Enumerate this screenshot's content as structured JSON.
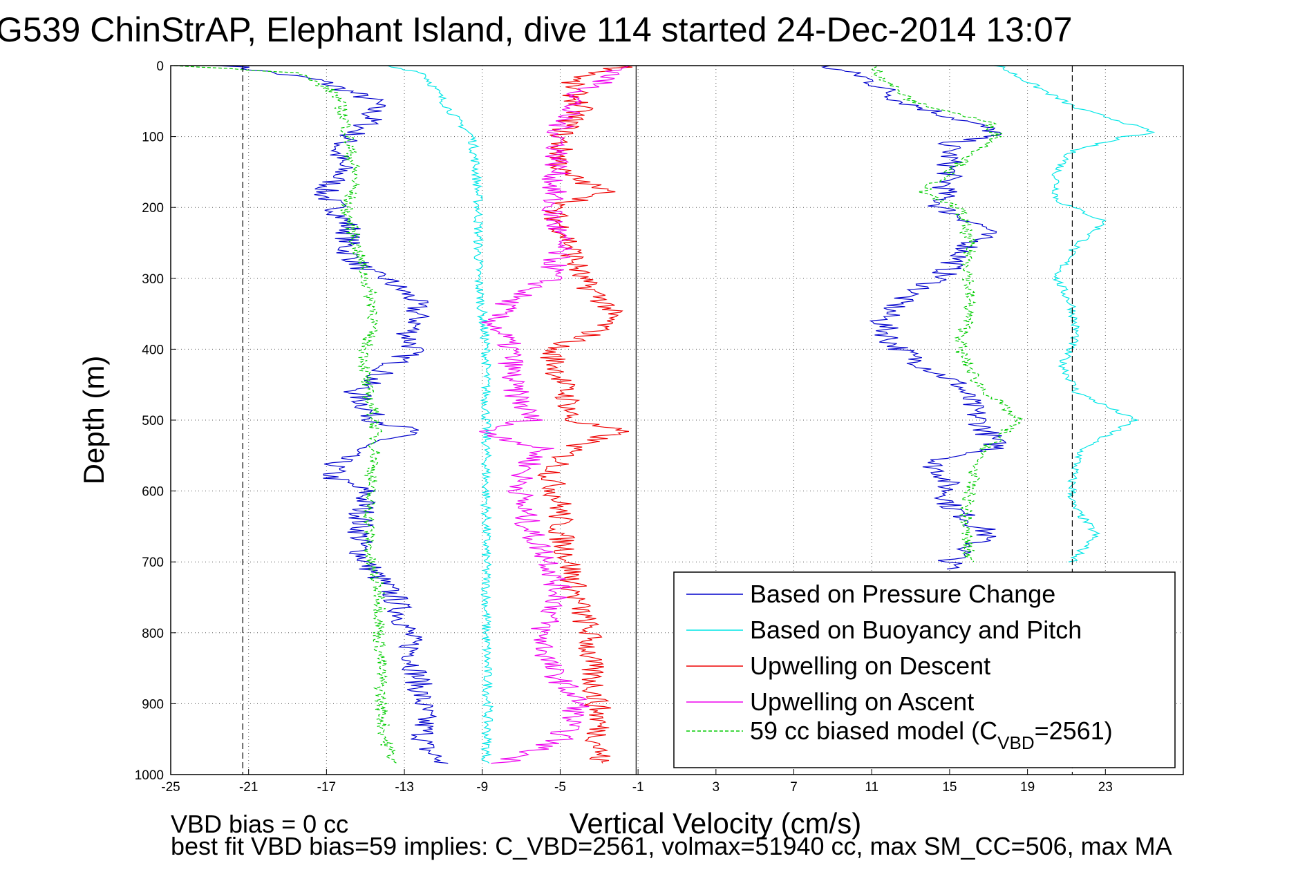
{
  "chart_data": {
    "type": "line",
    "title": "G539 ChinStrAP, Elephant Island, dive 114 started 24-Dec-2014 13:07",
    "xlabel": "Vertical Velocity (cm/s)",
    "ylabel": "Depth (m)",
    "xlim": [
      -25,
      27
    ],
    "ylim": [
      0,
      1000
    ],
    "y_reversed": true,
    "grid": true,
    "x_ticks": [
      -25,
      -21,
      -17,
      -13,
      -9,
      -5,
      -1,
      3,
      7,
      11,
      15,
      19,
      23
    ],
    "y_ticks": [
      0,
      100,
      200,
      300,
      400,
      500,
      600,
      700,
      800,
      900,
      1000
    ],
    "reference_lines": [
      -21.3,
      -1.1,
      21.3
    ],
    "legend_position": "bottom-right",
    "colors": {
      "pressure": "#0000cc",
      "buoyancy": "#00e6e6",
      "up_descent": "#ee0000",
      "up_ascent": "#ee00ee",
      "model": "#00cc00"
    },
    "series": [
      {
        "name": "Based on Pressure Change",
        "style": "solid",
        "color_key": "pressure",
        "segments": [
          {
            "depth": [
              0,
              20,
              50,
              80,
              100,
              120,
              150,
              180,
              200,
              230,
              260,
              290,
              300,
              330,
              360,
              380,
              400,
              430,
              460,
              500,
              515,
              540,
              560,
              580,
              600,
              640,
              680,
              700,
              750,
              800,
              840,
              880,
              920,
              960,
              985
            ],
            "velocity": [
              -22,
              -17.5,
              -14.5,
              -14.8,
              -15.8,
              -16.5,
              -16.2,
              -17.2,
              -16.5,
              -15.8,
              -16,
              -15,
              -14,
              -12.5,
              -12.3,
              -12.8,
              -12.5,
              -14,
              -15.5,
              -14.5,
              -12.5,
              -15.5,
              -16.5,
              -16.8,
              -15,
              -15.2,
              -15.3,
              -15,
              -13.5,
              -12.8,
              -12.5,
              -12.2,
              -12,
              -12,
              -11
            ]
          },
          {
            "depth": [
              0,
              15,
              30,
              50,
              80,
              95,
              110,
              150,
              200,
              230,
              260,
              300,
              330,
              360,
              390,
              420,
              450,
              500,
              540,
              560,
              580,
              620,
              660,
              700,
              710
            ],
            "velocity": [
              8.5,
              10.5,
              11.5,
              12.5,
              16,
              17.5,
              15,
              15,
              14.5,
              17,
              15.8,
              14.5,
              12.5,
              11.5,
              12,
              13.5,
              15.5,
              16.5,
              17.5,
              14,
              14.8,
              15,
              17,
              15,
              15
            ]
          }
        ]
      },
      {
        "name": "Based on Buoyancy and Pitch",
        "style": "solid",
        "color_key": "buoyancy",
        "segments": [
          {
            "depth": [
              0,
              10,
              50,
              80,
              100,
              150,
              200,
              300,
              400,
              500,
              600,
              700,
              800,
              900,
              985
            ],
            "velocity": [
              -14,
              -12,
              -11,
              -10.2,
              -9.5,
              -9.3,
              -9.2,
              -9.2,
              -8.8,
              -8.8,
              -8.8,
              -8.8,
              -8.8,
              -8.7,
              -8.8
            ]
          },
          {
            "depth": [
              0,
              30,
              60,
              80,
              95,
              100,
              120,
              150,
              190,
              220,
              260,
              300,
              340,
              380,
              420,
              460,
              500,
              540,
              580,
              620,
              660,
              700
            ],
            "velocity": [
              17.5,
              19.5,
              21.5,
              24,
              25.5,
              24,
              21.3,
              20.5,
              20.5,
              23,
              21.3,
              20.5,
              21.3,
              21.5,
              20.8,
              21.5,
              24.5,
              21.8,
              21.3,
              21.3,
              22.5,
              21.3
            ]
          }
        ]
      },
      {
        "name": "Upwelling on Descent",
        "style": "solid",
        "color_key": "up_descent",
        "segments": [
          {
            "depth": [
              0,
              20,
              60,
              100,
              150,
              180,
              200,
              250,
              300,
              340,
              360,
              380,
              400,
              440,
              480,
              500,
              515,
              540,
              580,
              620,
              660,
              700,
              750,
              800,
              840,
              880,
              920,
              985
            ],
            "velocity": [
              -1.5,
              -4.5,
              -4,
              -5,
              -5,
              -2.5,
              -5.5,
              -4.5,
              -4,
              -2.5,
              -2.5,
              -3.5,
              -5.5,
              -5,
              -4.5,
              -4.5,
              -2,
              -4.5,
              -5.5,
              -5,
              -5,
              -4.5,
              -4.2,
              -3.5,
              -3.5,
              -3.2,
              -3,
              -3
            ]
          }
        ]
      },
      {
        "name": "Upwelling on Ascent",
        "style": "solid",
        "color_key": "up_ascent",
        "segments": [
          {
            "depth": [
              0,
              40,
              80,
              100,
              150,
              200,
              250,
              300,
              330,
              360,
              380,
              400,
              450,
              500,
              515,
              540,
              580,
              620,
              660,
              700,
              750,
              800,
              850,
              900,
              950,
              985
            ],
            "velocity": [
              -1.5,
              -4,
              -5,
              -5,
              -5.2,
              -5.5,
              -5,
              -5.5,
              -7.5,
              -8.5,
              -8,
              -7.5,
              -7.5,
              -6.5,
              -9,
              -6,
              -7,
              -7,
              -6.5,
              -5.5,
              -5,
              -6,
              -5.5,
              -4,
              -5,
              -8
            ]
          }
        ]
      },
      {
        "name": "59 cc biased model (C_VBD=2561)",
        "legend_main": "59 cc biased model (C",
        "legend_sub": "VBD",
        "legend_tail": "=2561)",
        "style": "dashed",
        "color_key": "model",
        "segments": [
          {
            "depth": [
              0,
              10,
              40,
              80,
              120,
              160,
              200,
              250,
              300,
              350,
              400,
              450,
              500,
              550,
              600,
              650,
              700,
              750,
              800,
              850,
              900,
              950,
              985
            ],
            "velocity": [
              -24.5,
              -18.5,
              -16.5,
              -16,
              -15.8,
              -15.5,
              -16,
              -15.5,
              -15,
              -14.5,
              -15,
              -15,
              -14.5,
              -14.5,
              -14.8,
              -14.8,
              -14.8,
              -14.2,
              -14.3,
              -14.2,
              -14.2,
              -14,
              -13.5
            ]
          },
          {
            "depth": [
              0,
              15,
              50,
              80,
              100,
              150,
              180,
              200,
              250,
              300,
              350,
              400,
              450,
              500,
              550,
              600,
              650,
              700
            ],
            "velocity": [
              11,
              11.5,
              13,
              17,
              17.5,
              15,
              13.5,
              15.5,
              16,
              16,
              16,
              15.5,
              16.5,
              18.5,
              16.5,
              16,
              15.8,
              16
            ]
          }
        ]
      }
    ]
  },
  "footer": {
    "line1": "VBD bias = 0 cc",
    "line2": "best fit VBD bias=59 implies: C_VBD=2561, volmax=51940 cc, max SM_CC=506, max MA"
  }
}
